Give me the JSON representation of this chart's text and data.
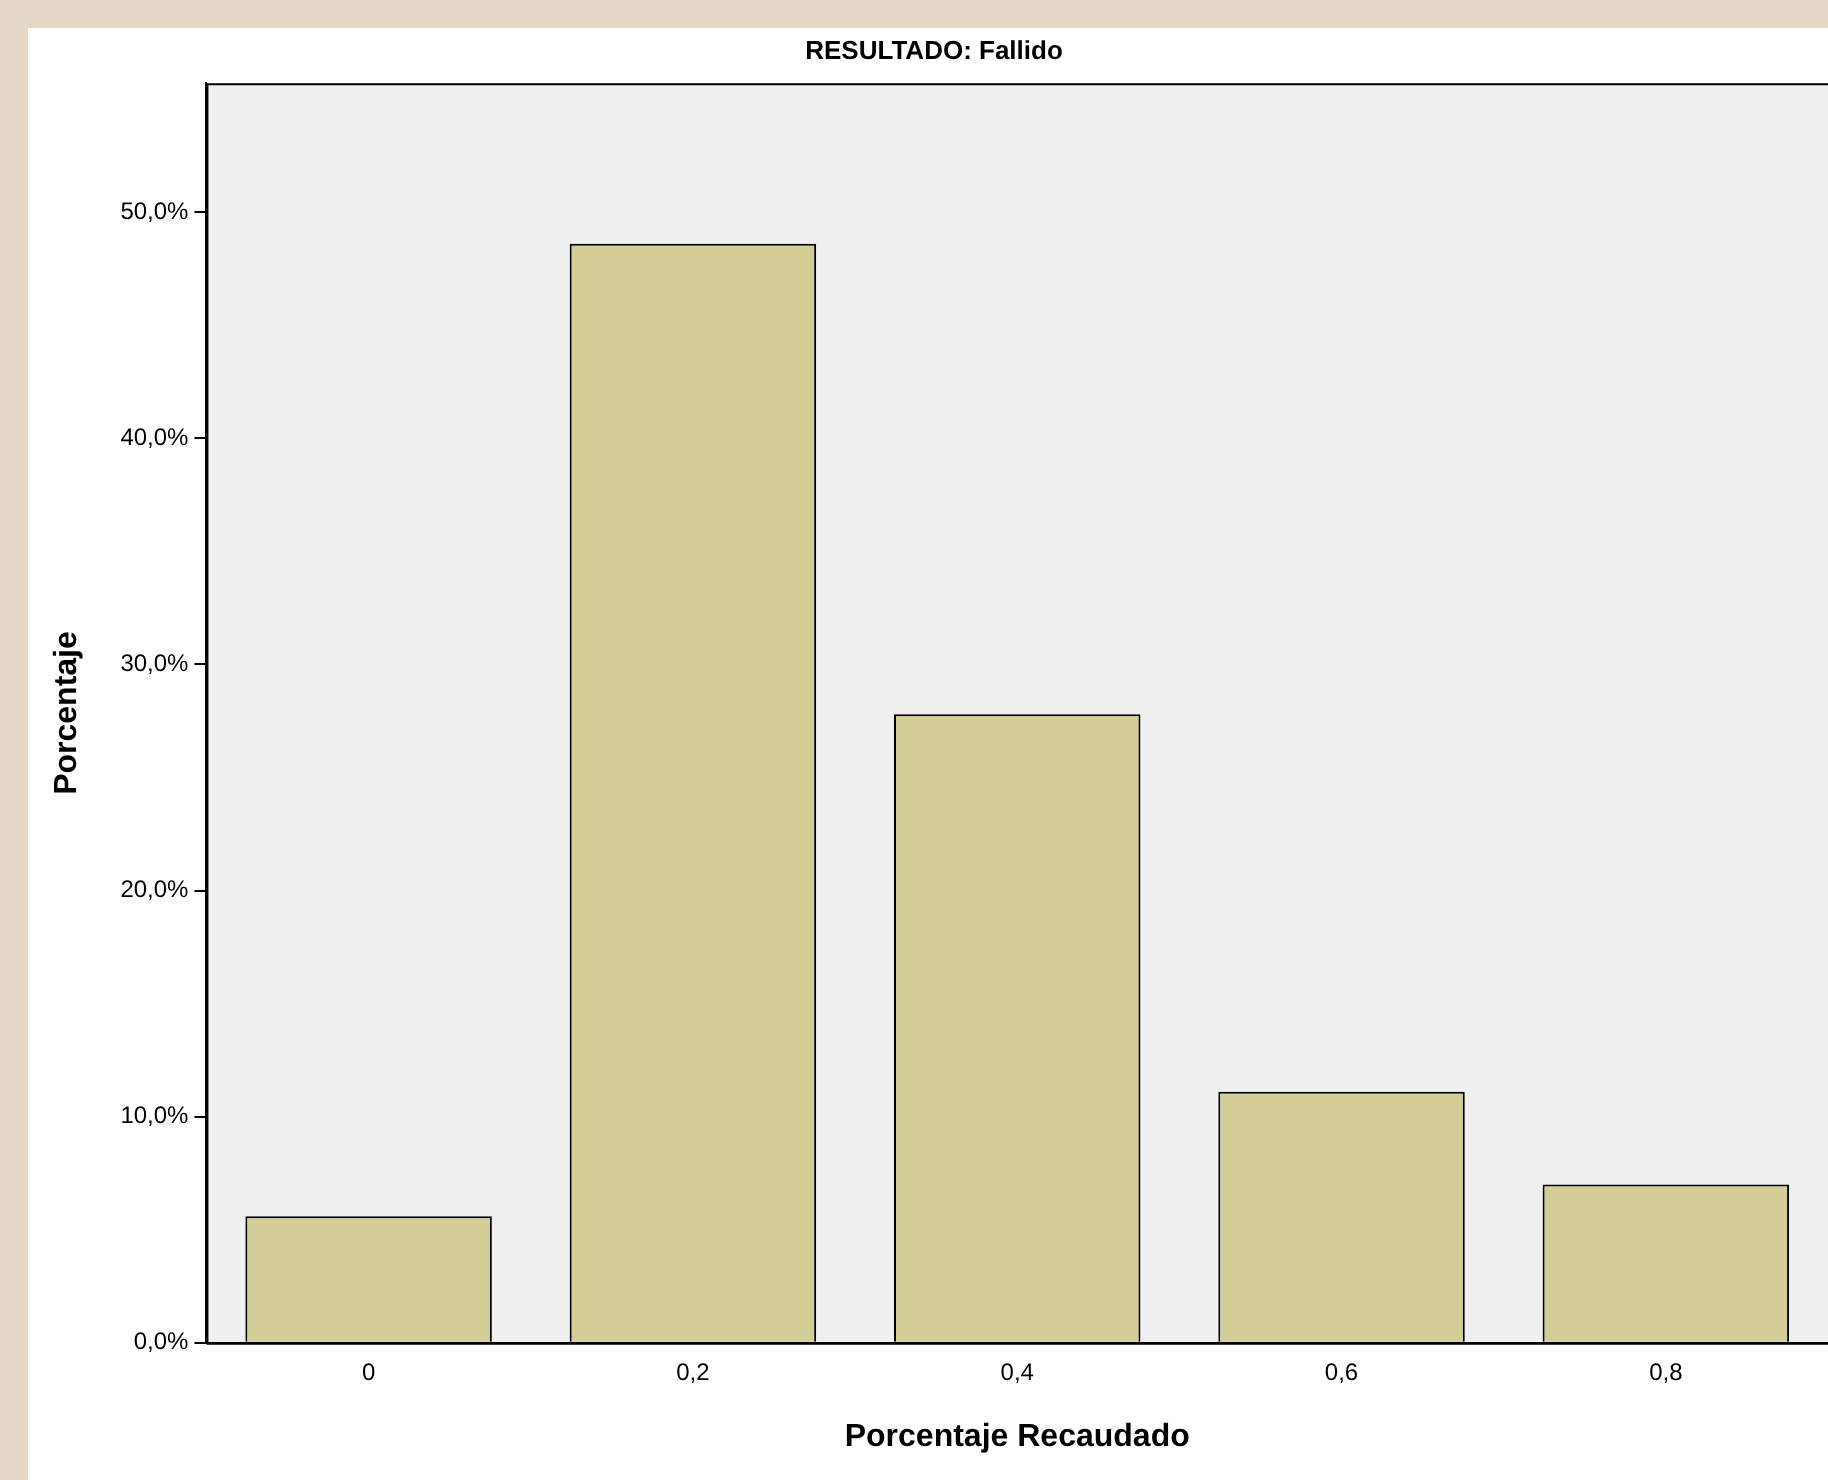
{
  "chart_data": {
    "type": "bar",
    "title": "RESULTADO: Fallido",
    "xlabel": "Porcentaje Recaudado",
    "ylabel": "Porcentaje",
    "categories": [
      "0",
      "0,2",
      "0,4",
      "0,6",
      "0,8"
    ],
    "values": [
      5.6,
      48.6,
      27.8,
      11.1,
      7.0
    ],
    "color": "#d3cd97",
    "ylim": [
      0,
      55.7
    ],
    "yticks": [
      {
        "value": 0,
        "label": "0,0%"
      },
      {
        "value": 10,
        "label": "10,0%"
      },
      {
        "value": 20,
        "label": "20,0%"
      },
      {
        "value": 30,
        "label": "30,0%"
      },
      {
        "value": 40,
        "label": "40,0%"
      },
      {
        "value": 50,
        "label": "50,0%"
      }
    ],
    "grid": false,
    "legend": false
  }
}
